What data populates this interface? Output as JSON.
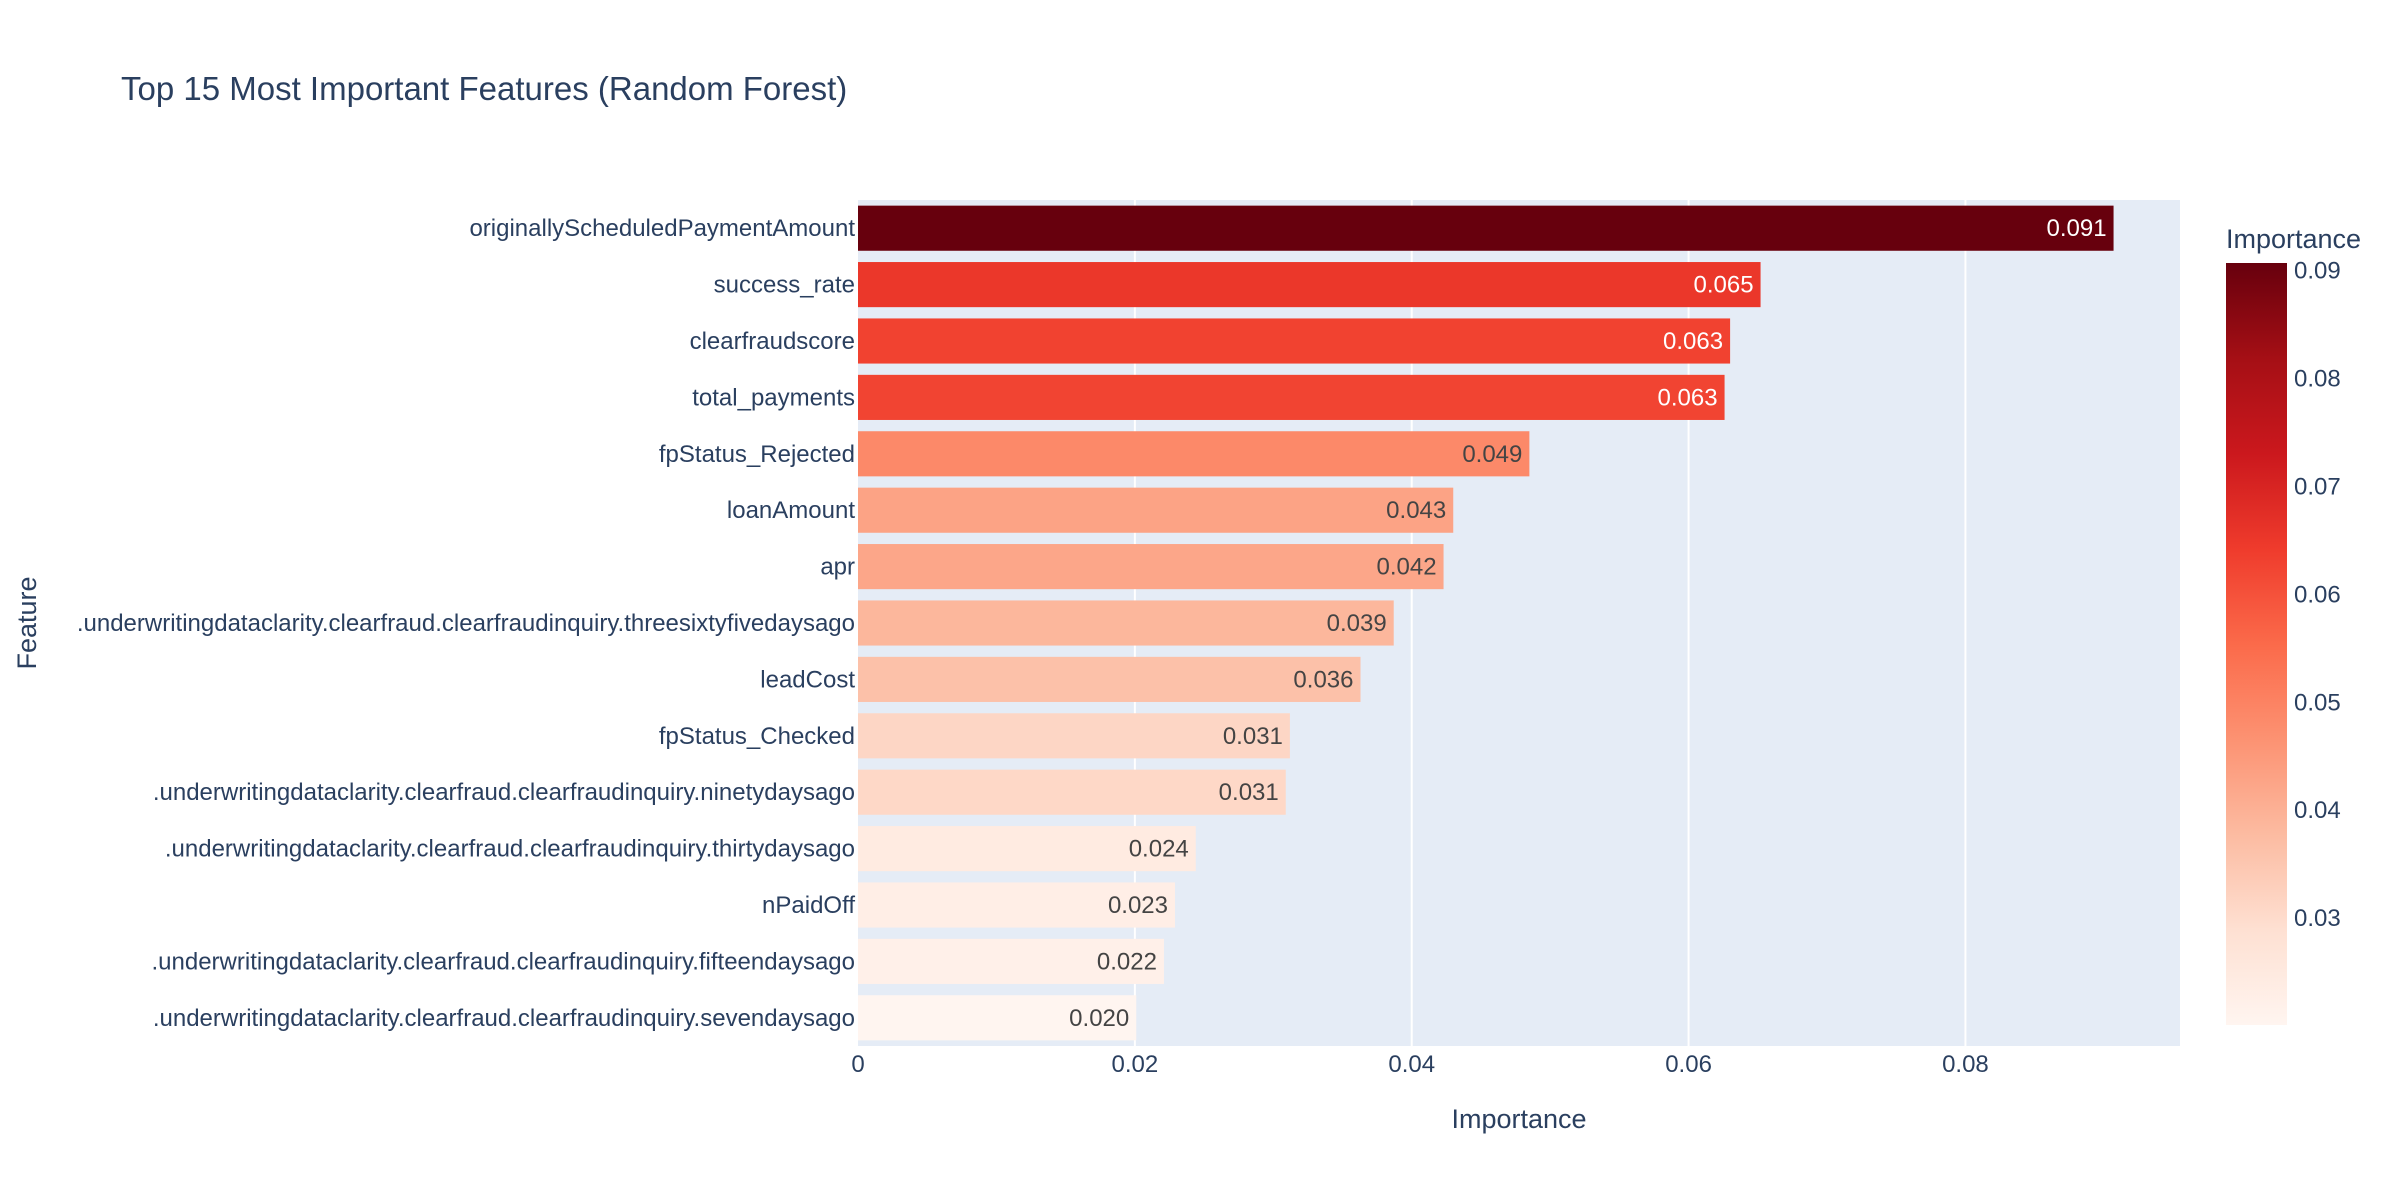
{
  "chart_data": {
    "type": "bar",
    "orientation": "horizontal",
    "title": "Top 15 Most Important Features (Random Forest)",
    "xlabel": "Importance",
    "ylabel": "Feature",
    "xlim": [
      0,
      0.0955
    ],
    "x_ticks": [
      0,
      0.02,
      0.04,
      0.06,
      0.08
    ],
    "x_tick_labels": [
      "0",
      "0.02",
      "0.04",
      "0.06",
      "0.08"
    ],
    "grid": true,
    "colorscale": "Reds",
    "categories": [
      "originallyScheduledPaymentAmount",
      "success_rate",
      "clearfraudscore",
      "total_payments",
      "fpStatus_Rejected",
      "loanAmount",
      "apr",
      ".underwritingdataclarity.clearfraud.clearfraudinquiry.threesixtyfivedaysago",
      "leadCost",
      "fpStatus_Checked",
      ".underwritingdataclarity.clearfraud.clearfraudinquiry.ninetydaysago",
      ".underwritingdataclarity.clearfraud.clearfraudinquiry.thirtydaysago",
      "nPaidOff",
      ".underwritingdataclarity.clearfraud.clearfraudinquiry.fifteendaysago",
      ".underwritingdataclarity.clearfraud.clearfraudinquiry.sevendaysago"
    ],
    "values": [
      0.0907,
      0.0652,
      0.063,
      0.0626,
      0.0485,
      0.043,
      0.0423,
      0.0387,
      0.0363,
      0.0312,
      0.0309,
      0.0244,
      0.0229,
      0.0221,
      0.0201
    ],
    "value_labels": [
      "0.091",
      "0.065",
      "0.063",
      "0.063",
      "0.049",
      "0.043",
      "0.042",
      "0.039",
      "0.036",
      "0.031",
      "0.031",
      "0.024",
      "0.023",
      "0.022",
      "0.020"
    ],
    "colorbar": {
      "title": "Importance",
      "range": [
        0.0201,
        0.0907
      ],
      "ticks": [
        0.03,
        0.04,
        0.05,
        0.06,
        0.07,
        0.08,
        0.09
      ],
      "tick_labels": [
        "0.03",
        "0.04",
        "0.05",
        "0.06",
        "0.07",
        "0.08",
        "0.09"
      ]
    }
  }
}
